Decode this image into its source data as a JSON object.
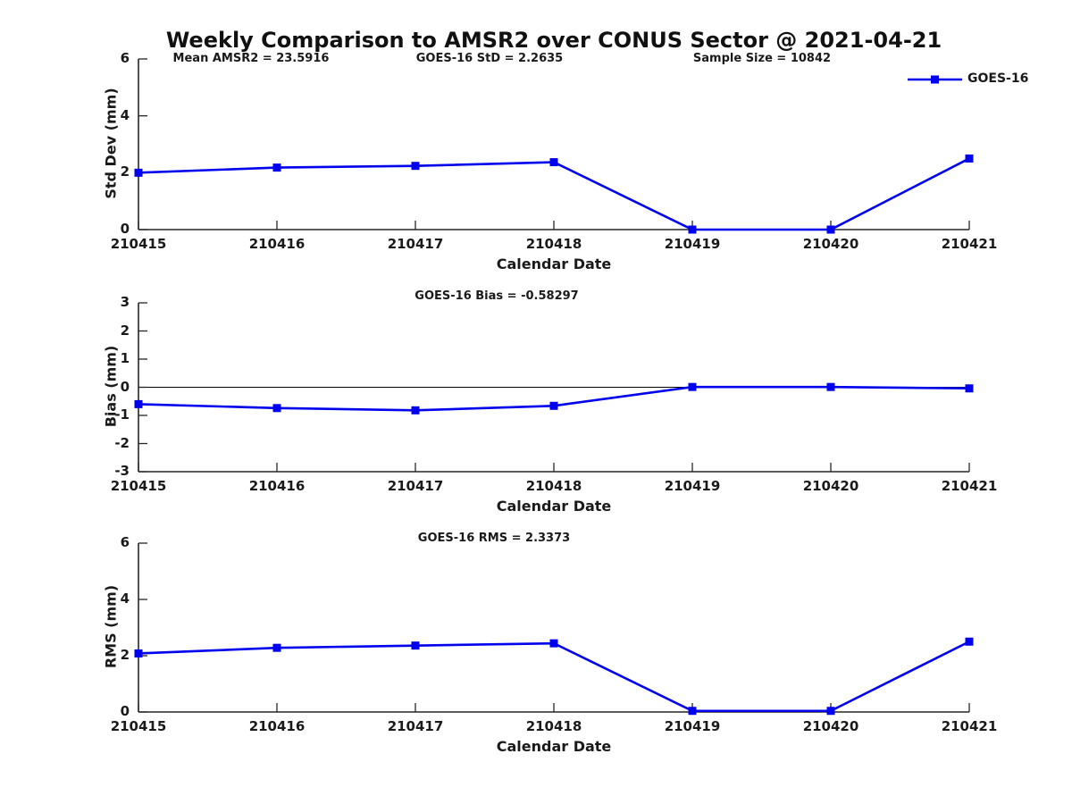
{
  "page": {
    "title": "Weekly Comparison to AMSR2 over CONUS Sector @ 2021-04-21"
  },
  "colors": {
    "series": "#0000EE",
    "axis": "#262626",
    "text": "#1a1a1a",
    "zero_line": "#000000"
  },
  "legend": {
    "label": "GOES-16",
    "position": "top-right",
    "marker": "filled-square"
  },
  "chart_data": [
    {
      "type": "line",
      "title": "",
      "annotations": [
        "Mean AMSR2 = 23.5916",
        "GOES-16 StD = 2.2635",
        "Sample Size = 10842"
      ],
      "xlabel": "Calendar Date",
      "ylabel": "Std Dev (mm)",
      "categories": [
        "210415",
        "210416",
        "210417",
        "210418",
        "210419",
        "210420",
        "210421"
      ],
      "series": [
        {
          "name": "GOES-16",
          "values": [
            2.0,
            2.18,
            2.24,
            2.37,
            0.0,
            0.0,
            2.5
          ]
        }
      ],
      "ylim": [
        0,
        6
      ],
      "yticks": [
        0,
        2,
        4,
        6
      ],
      "zero_line": false,
      "grid": false,
      "show_legend": true
    },
    {
      "type": "line",
      "title": "",
      "annotations": [
        "GOES-16 Bias  = -0.58297"
      ],
      "xlabel": "Calendar Date",
      "ylabel": "Bias (mm)",
      "categories": [
        "210415",
        "210416",
        "210417",
        "210418",
        "210419",
        "210420",
        "210421"
      ],
      "series": [
        {
          "name": "GOES-16",
          "values": [
            -0.6,
            -0.74,
            -0.82,
            -0.66,
            0.01,
            0.01,
            -0.04
          ]
        }
      ],
      "ylim": [
        -3,
        3
      ],
      "yticks": [
        -3,
        -2,
        -1,
        0,
        1,
        2,
        3
      ],
      "zero_line": true,
      "grid": false,
      "show_legend": false
    },
    {
      "type": "line",
      "title": "",
      "annotations": [
        "GOES-16 RMS = 2.3373"
      ],
      "xlabel": "Calendar Date",
      "ylabel": "RMS (mm)",
      "categories": [
        "210415",
        "210416",
        "210417",
        "210418",
        "210419",
        "210420",
        "210421"
      ],
      "series": [
        {
          "name": "GOES-16",
          "values": [
            2.08,
            2.28,
            2.36,
            2.44,
            0.04,
            0.04,
            2.5
          ]
        }
      ],
      "ylim": [
        0,
        6
      ],
      "yticks": [
        0,
        2,
        4,
        6
      ],
      "zero_line": false,
      "grid": false,
      "show_legend": false
    }
  ]
}
